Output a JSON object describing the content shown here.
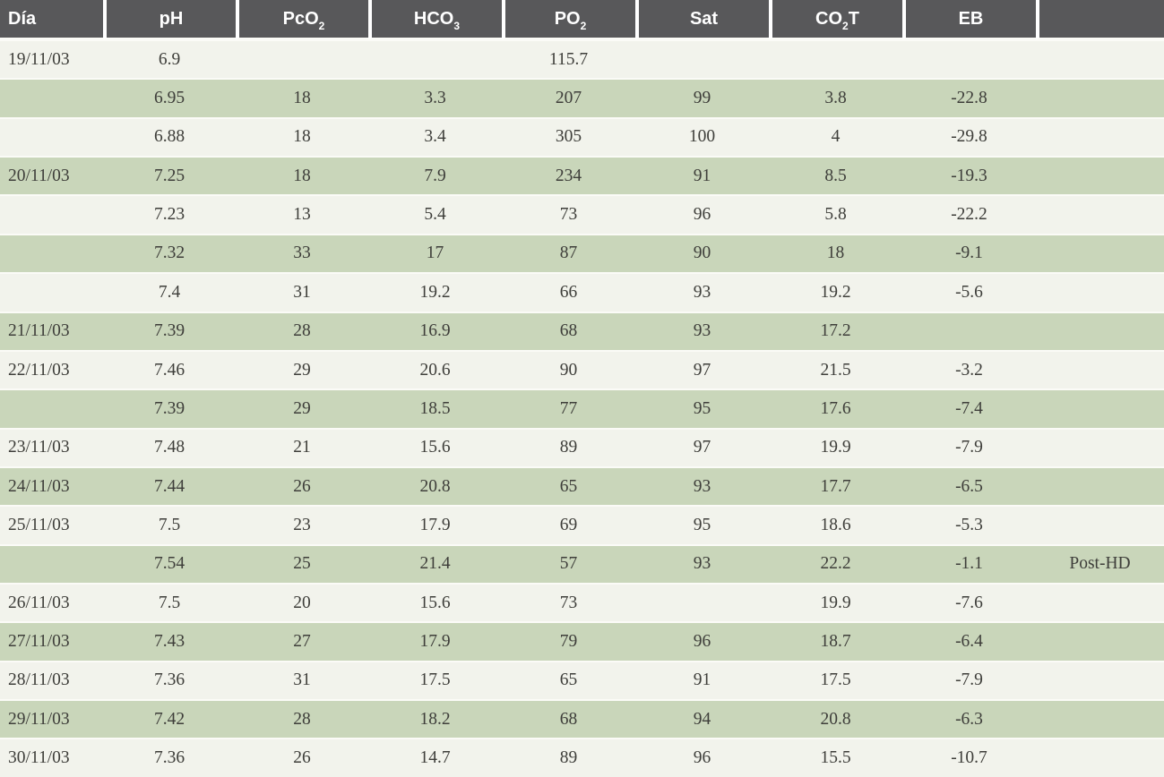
{
  "table": {
    "columns": [
      {
        "id": "dia",
        "label": "Día",
        "sub": "",
        "suffix": ""
      },
      {
        "id": "ph",
        "label": "pH",
        "sub": "",
        "suffix": ""
      },
      {
        "id": "pco2",
        "label": "PcO",
        "sub": "2",
        "suffix": ""
      },
      {
        "id": "hco3",
        "label": "HCO",
        "sub": "3",
        "suffix": ""
      },
      {
        "id": "po2",
        "label": "PO",
        "sub": "2",
        "suffix": ""
      },
      {
        "id": "sat",
        "label": "Sat",
        "sub": "",
        "suffix": ""
      },
      {
        "id": "co2t",
        "label": "CO",
        "sub": "2",
        "suffix": "T"
      },
      {
        "id": "eb",
        "label": "EB",
        "sub": "",
        "suffix": ""
      },
      {
        "id": "note",
        "label": "",
        "sub": "",
        "suffix": ""
      }
    ],
    "rows": [
      [
        "19/11/03",
        "6.9",
        "",
        "",
        "115.7",
        "",
        "",
        "",
        ""
      ],
      [
        "",
        "6.95",
        "18",
        "3.3",
        "207",
        "99",
        "3.8",
        "-22.8",
        ""
      ],
      [
        "",
        "6.88",
        "18",
        "3.4",
        "305",
        "100",
        "4",
        "-29.8",
        ""
      ],
      [
        "20/11/03",
        "7.25",
        "18",
        "7.9",
        "234",
        "91",
        "8.5",
        "-19.3",
        ""
      ],
      [
        "",
        "7.23",
        "13",
        "5.4",
        "73",
        "96",
        "5.8",
        "-22.2",
        ""
      ],
      [
        "",
        "7.32",
        "33",
        "17",
        "87",
        "90",
        "18",
        "-9.1",
        ""
      ],
      [
        "",
        "7.4",
        "31",
        "19.2",
        "66",
        "93",
        "19.2",
        "-5.6",
        ""
      ],
      [
        "21/11/03",
        "7.39",
        "28",
        "16.9",
        "68",
        "93",
        "17.2",
        "",
        ""
      ],
      [
        "22/11/03",
        "7.46",
        "29",
        "20.6",
        "90",
        "97",
        "21.5",
        "-3.2",
        ""
      ],
      [
        "",
        "7.39",
        "29",
        "18.5",
        "77",
        "95",
        "17.6",
        "-7.4",
        ""
      ],
      [
        "23/11/03",
        "7.48",
        "21",
        "15.6",
        "89",
        "97",
        "19.9",
        "-7.9",
        ""
      ],
      [
        "24/11/03",
        "7.44",
        "26",
        "20.8",
        "65",
        "93",
        "17.7",
        "-6.5",
        ""
      ],
      [
        "25/11/03",
        "7.5",
        "23",
        "17.9",
        "69",
        "95",
        "18.6",
        "-5.3",
        ""
      ],
      [
        "",
        "7.54",
        "25",
        "21.4",
        "57",
        "93",
        "22.2",
        "-1.1",
        "Post-HD"
      ],
      [
        "26/11/03",
        "7.5",
        "20",
        "15.6",
        "73",
        "",
        "19.9",
        "-7.6",
        ""
      ],
      [
        "27/11/03",
        "7.43",
        "27",
        "17.9",
        "79",
        "96",
        "18.7",
        "-6.4",
        ""
      ],
      [
        "28/11/03",
        "7.36",
        "31",
        "17.5",
        "65",
        "91",
        "17.5",
        "-7.9",
        ""
      ],
      [
        "29/11/03",
        "7.42",
        "28",
        "18.2",
        "68",
        "94",
        "20.8",
        "-6.3",
        ""
      ],
      [
        "30/11/03",
        "7.36",
        "26",
        "14.7",
        "89",
        "96",
        "15.5",
        "-10.7",
        ""
      ]
    ]
  },
  "colors": {
    "header_bg": "#58585a",
    "header_text": "#ffffff",
    "row_light": "#f2f3ec",
    "row_green": "#c9d6ba",
    "separator": "#fbfbf7",
    "body_text": "#3e3e3a"
  }
}
